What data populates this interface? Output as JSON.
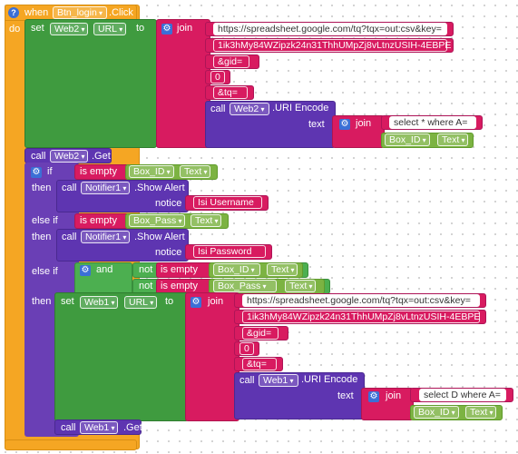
{
  "event": {
    "when": "when",
    "component": "Btn_login",
    "event": ".Click",
    "do": "do",
    "help": "?"
  },
  "set1": {
    "set": "set",
    "component": "Web2",
    "prop": "URL",
    "to": "to",
    "join": "join",
    "items": [
      "https://spreadsheet.google.com/tq?tqx=out:csv&key=",
      "1ik3hMy84WZipzk24n31ThhUMpZj8vLtnzUSIH-4EBPE",
      "&gid=",
      "0",
      "&tq="
    ],
    "call": "call",
    "call_component": "Web2",
    "call_method": ".URI Encode",
    "text_label": "text",
    "join2": "join",
    "query": "select * where A=",
    "getter": "Box_ID",
    "getter_prop": "Text"
  },
  "get1": {
    "call": "call",
    "component": "Web2",
    "method": ".Get"
  },
  "if1": {
    "if": "if",
    "is_empty": "is empty",
    "getter": "Box_ID",
    "getter_prop": "Text",
    "then": "then",
    "call": "call",
    "component": "Notifier1",
    "method": ".Show Alert",
    "notice": "notice",
    "message": "Isi Username"
  },
  "elif1": {
    "else_if": "else if",
    "is_empty": "is empty",
    "getter": "Box_Pass",
    "getter_prop": "Text",
    "then": "then",
    "call": "call",
    "component": "Notifier1",
    "method": ".Show Alert",
    "notice": "notice",
    "message": "Isi Password"
  },
  "elif2": {
    "else_if": "else if",
    "and": "and",
    "not": "not",
    "is_empty": "is empty",
    "getter1": "Box_ID",
    "getter1_prop": "Text",
    "getter2": "Box_Pass",
    "getter2_prop": "Text",
    "then": "then"
  },
  "set2": {
    "set": "set",
    "component": "Web1",
    "prop": "URL",
    "to": "to",
    "join": "join",
    "items": [
      "https://spreadsheet.google.com/tq?tqx=out:csv&key=",
      "1ik3hMy84WZipzk24n31ThhUMpZj8vLtnzUSIH-4EBPE",
      "&gid=",
      "0",
      "&tq="
    ],
    "call": "call",
    "call_component": "Web1",
    "call_method": ".URI Encode",
    "text_label": "text",
    "join2": "join",
    "query": "select D where A=",
    "getter": "Box_ID",
    "getter_prop": "Text"
  },
  "get2": {
    "call": "call",
    "component": "Web1",
    "method": ".Get"
  },
  "colors": {
    "event": "#f5a623",
    "statement": "#3f9b3f",
    "text": "#d81b60",
    "procedure": "#5e35b1",
    "getter": "#7cb342"
  }
}
